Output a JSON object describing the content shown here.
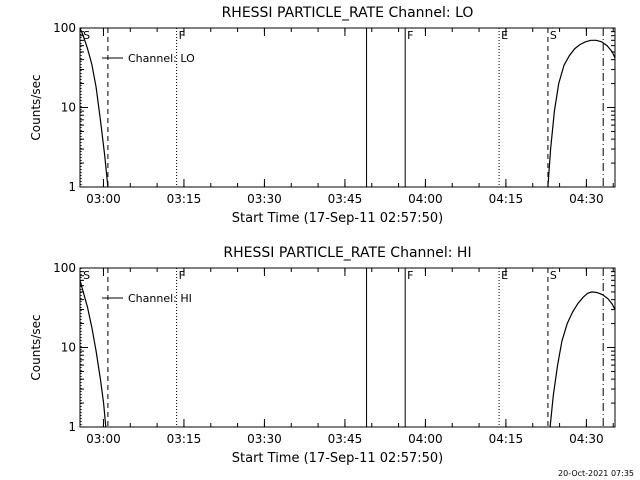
{
  "footer_timestamp": "20-Oct-2021 07:35",
  "chart_data": [
    {
      "type": "line",
      "title": "RHESSI PARTICLE_RATE Channel: LO",
      "xlabel": "Start Time (17-Sep-11 02:57:50)",
      "ylabel": "Counts/sec",
      "yscale": "log",
      "ylim": [
        1,
        100
      ],
      "yticks": [
        {
          "value": 1,
          "label": "1"
        },
        {
          "value": 10,
          "label": "10"
        },
        {
          "value": 100,
          "label": "100"
        }
      ],
      "xlim_min": [
        -2.2,
        97.5
      ],
      "xticks": [
        {
          "value": 2.17,
          "label": "03:00"
        },
        {
          "value": 17.17,
          "label": "03:15"
        },
        {
          "value": 32.17,
          "label": "03:30"
        },
        {
          "value": 47.17,
          "label": "03:45"
        },
        {
          "value": 62.17,
          "label": "04:00"
        },
        {
          "value": 77.17,
          "label": "04:15"
        },
        {
          "value": 92.17,
          "label": "04:30"
        }
      ],
      "legend": {
        "label": "Channel: LO",
        "placement": "top-left"
      },
      "series": [
        {
          "segments": [
            {
              "x": [
                -2.2,
                -1.6,
                -0.8,
                0,
                0.8,
                1.6,
                2.4,
                3.0
              ],
              "y": [
                100,
                80,
                55,
                35,
                18,
                7,
                2.5,
                1
              ]
            },
            {
              "x": [
                85.0,
                85.5,
                86.2,
                87.0,
                88.0,
                89.0,
                90.0,
                91.0,
                92.0,
                93.0,
                94.0,
                95.0,
                96.0,
                97.0,
                97.5
              ],
              "y": [
                1,
                3,
                9,
                20,
                34,
                45,
                55,
                62,
                67,
                70,
                70,
                67,
                60,
                50,
                42
              ]
            }
          ]
        }
      ],
      "markers": [
        {
          "x": -2.0,
          "style": "dotted",
          "label": "S"
        },
        {
          "x": 3.0,
          "style": "dashed",
          "label": ""
        },
        {
          "x": 15.8,
          "style": "dotted",
          "label": "F"
        },
        {
          "x": 51.2,
          "style": "solid",
          "label": ""
        },
        {
          "x": 58.4,
          "style": "solid",
          "label": "F"
        },
        {
          "x": 75.9,
          "style": "dotted",
          "label": "E"
        },
        {
          "x": 85.0,
          "style": "dashed",
          "label": "S"
        },
        {
          "x": 95.3,
          "style": "dashdot",
          "label": ""
        }
      ]
    },
    {
      "type": "line",
      "title": "RHESSI PARTICLE_RATE Channel: HI",
      "xlabel": "Start Time (17-Sep-11 02:57:50)",
      "ylabel": "Counts/sec",
      "yscale": "log",
      "ylim": [
        1,
        100
      ],
      "yticks": [
        {
          "value": 1,
          "label": "1"
        },
        {
          "value": 10,
          "label": "10"
        },
        {
          "value": 100,
          "label": "100"
        }
      ],
      "xlim_min": [
        -2.2,
        97.5
      ],
      "xticks": [
        {
          "value": 2.17,
          "label": "03:00"
        },
        {
          "value": 17.17,
          "label": "03:15"
        },
        {
          "value": 32.17,
          "label": "03:30"
        },
        {
          "value": 47.17,
          "label": "03:45"
        },
        {
          "value": 62.17,
          "label": "04:00"
        },
        {
          "value": 77.17,
          "label": "04:15"
        },
        {
          "value": 92.17,
          "label": "04:30"
        }
      ],
      "legend": {
        "label": "Channel: HI",
        "placement": "top-left"
      },
      "series": [
        {
          "segments": [
            {
              "x": [
                -2.2,
                -1.6,
                -0.8,
                0,
                0.8,
                1.6,
                2.2,
                2.6
              ],
              "y": [
                70,
                50,
                32,
                18,
                9,
                4,
                2,
                1
              ]
            },
            {
              "x": [
                85.4,
                86.0,
                86.8,
                87.6,
                88.6,
                89.6,
                90.6,
                91.6,
                92.4,
                93.2,
                94.2,
                95.2,
                96.2,
                97.0,
                97.5
              ],
              "y": [
                1,
                2.5,
                6,
                12,
                20,
                28,
                36,
                43,
                48,
                50,
                49,
                46,
                41,
                35,
                30
              ]
            }
          ]
        }
      ],
      "markers": [
        {
          "x": -2.0,
          "style": "dotted",
          "label": "S"
        },
        {
          "x": 3.0,
          "style": "dashed",
          "label": ""
        },
        {
          "x": 15.8,
          "style": "dotted",
          "label": "F"
        },
        {
          "x": 51.2,
          "style": "solid",
          "label": ""
        },
        {
          "x": 58.4,
          "style": "solid",
          "label": "F"
        },
        {
          "x": 75.9,
          "style": "dotted",
          "label": "E"
        },
        {
          "x": 85.0,
          "style": "dashed",
          "label": "S"
        },
        {
          "x": 95.3,
          "style": "dashdot",
          "label": ""
        }
      ]
    }
  ]
}
